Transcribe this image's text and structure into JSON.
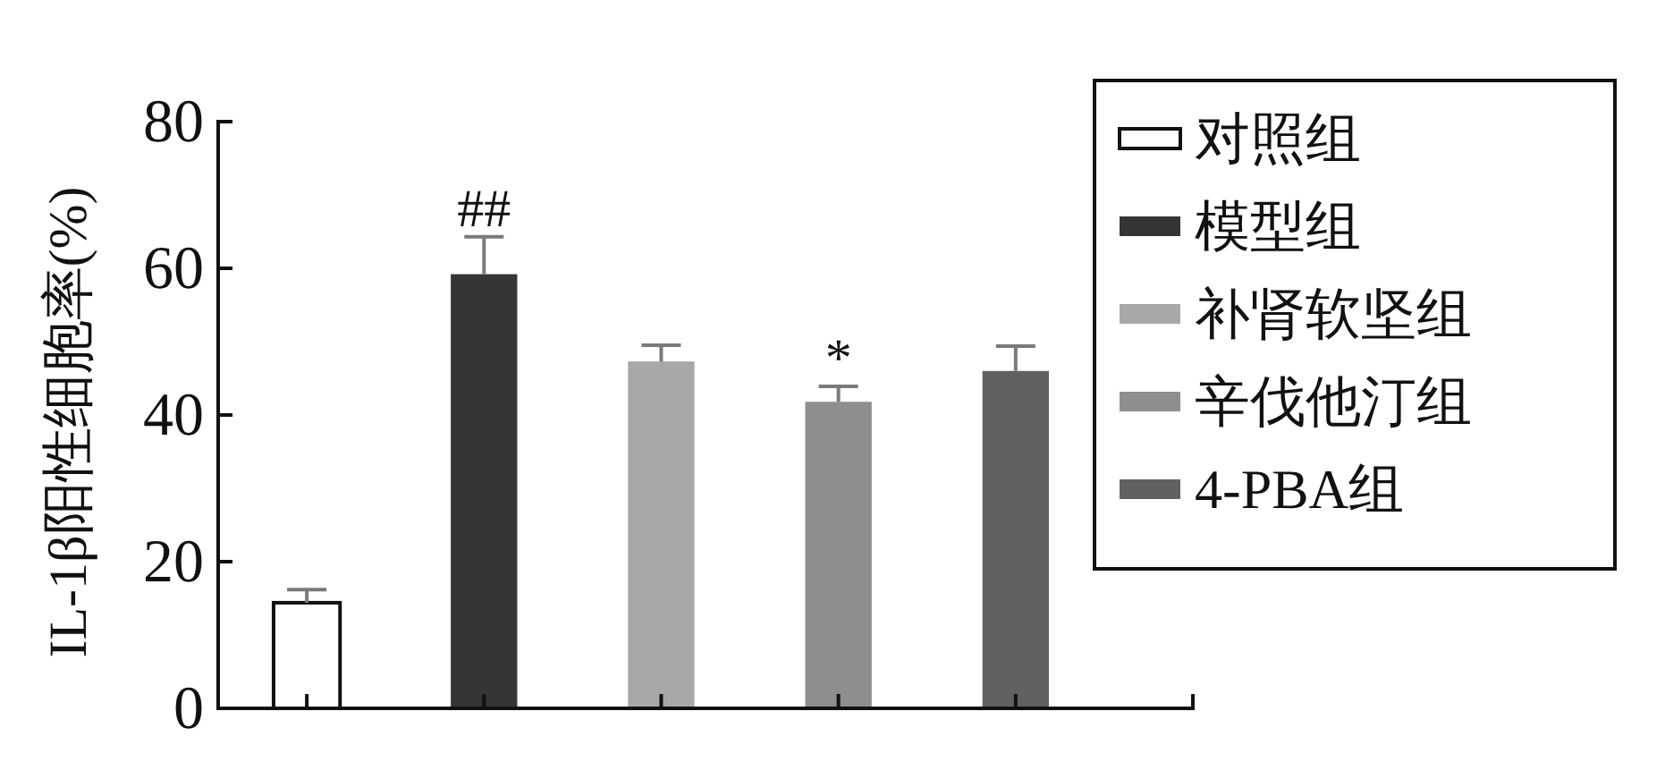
{
  "chart_data": {
    "type": "bar",
    "ylabel": "IL-1β阳性细胞率(%)",
    "categories": [
      null,
      null,
      null,
      null,
      null
    ],
    "ylim": [
      0,
      80
    ],
    "yticks": [
      0,
      20,
      40,
      60,
      80
    ],
    "legend": "right",
    "series": [
      {
        "name": "对照组",
        "color": "#ffffff",
        "values": [
          14.4,
          null,
          null,
          null,
          null
        ],
        "errors": [
          [
            14.4,
            16.2
          ],
          null,
          null,
          null,
          null
        ]
      },
      {
        "name": "模型组",
        "color": "#373435",
        "values": [
          null,
          59.2,
          null,
          null,
          null
        ],
        "errors": [
          null,
          [
            59.2,
            64.3
          ],
          null,
          null,
          null
        ],
        "value_labels": [
          null,
          "##",
          null,
          null,
          null
        ]
      },
      {
        "name": "补肾软坚组",
        "color": "#a8a8a8",
        "values": [
          null,
          null,
          47.3,
          null,
          null
        ],
        "errors": [
          null,
          null,
          [
            47.3,
            49.5
          ],
          null,
          null
        ]
      },
      {
        "name": "辛伐他汀组",
        "color": "#8e8e8e",
        "values": [
          null,
          null,
          null,
          41.8,
          null
        ],
        "errors": [
          null,
          null,
          null,
          [
            41.8,
            43.9
          ],
          null
        ],
        "value_labels": [
          null,
          null,
          null,
          "*",
          null
        ]
      },
      {
        "name": "4-PBA组",
        "color": "#616161",
        "values": [
          null,
          null,
          null,
          null,
          46.0
        ],
        "errors": [
          null,
          null,
          null,
          null,
          [
            46.0,
            49.4
          ]
        ]
      }
    ]
  }
}
